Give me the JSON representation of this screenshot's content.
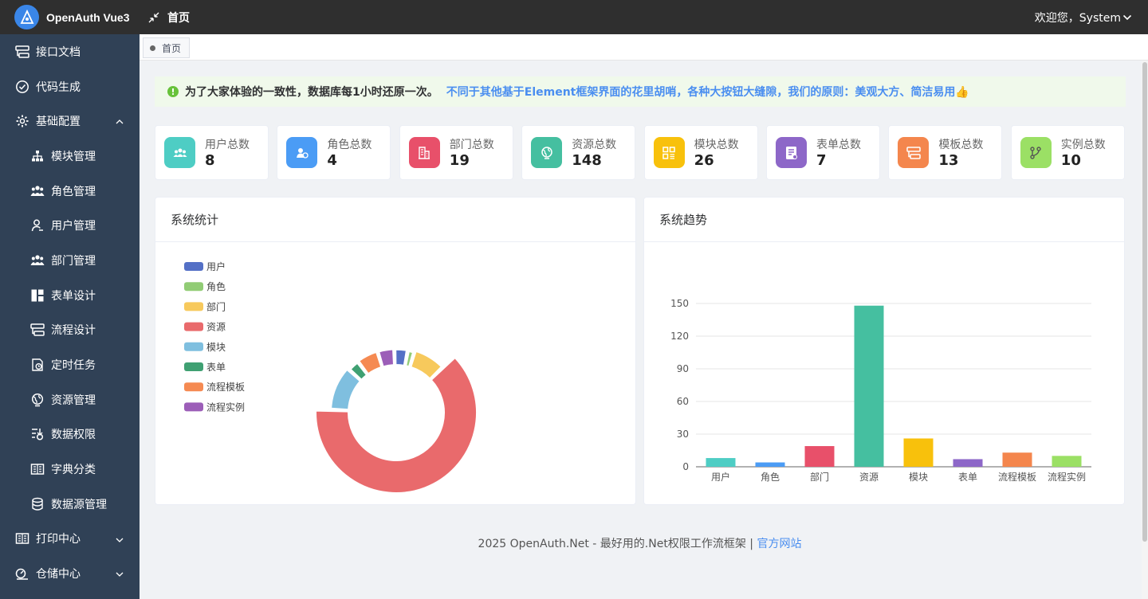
{
  "header": {
    "app_title": "OpenAuth Vue3",
    "page_title": "首页",
    "user_greeting": "欢迎您，System"
  },
  "sidebar": {
    "items": [
      {
        "label": "接口文档",
        "icon": "api-doc-icon",
        "level": 0
      },
      {
        "label": "代码生成",
        "icon": "check-circle-icon",
        "level": 0
      },
      {
        "label": "基础配置",
        "icon": "gear-icon",
        "level": 0,
        "expanded": true
      },
      {
        "label": "模块管理",
        "icon": "sitemap-icon",
        "level": 1
      },
      {
        "label": "角色管理",
        "icon": "users-icon",
        "level": 1
      },
      {
        "label": "用户管理",
        "icon": "user-icon",
        "level": 1
      },
      {
        "label": "部门管理",
        "icon": "department-icon",
        "level": 1
      },
      {
        "label": "表单设计",
        "icon": "form-layout-icon",
        "level": 1
      },
      {
        "label": "流程设计",
        "icon": "flow-icon",
        "level": 1
      },
      {
        "label": "定时任务",
        "icon": "timer-icon",
        "level": 1
      },
      {
        "label": "资源管理",
        "icon": "globe-icon",
        "level": 1
      },
      {
        "label": "数据权限",
        "icon": "data-permission-icon",
        "level": 1
      },
      {
        "label": "字典分类",
        "icon": "dictionary-icon",
        "level": 1
      },
      {
        "label": "数据源管理",
        "icon": "database-icon",
        "level": 1
      },
      {
        "label": "打印中心",
        "icon": "print-icon",
        "level": 0,
        "expanded": false
      },
      {
        "label": "仓储中心",
        "icon": "warehouse-icon",
        "level": 0,
        "expanded": false
      }
    ]
  },
  "tabs": [
    {
      "label": "首页",
      "active": true
    }
  ],
  "notice": {
    "text_main": "为了大家体验的一致性，数据库每1小时还原一次。",
    "text_highlight": "不同于其他基于Element框架界面的花里胡哨，各种大按钮大缝隙，我们的原则：美观大方、简洁易用👍"
  },
  "stats": [
    {
      "label": "用户总数",
      "value": "8",
      "color": "#4ecdc4",
      "icon": "users-icon"
    },
    {
      "label": "角色总数",
      "value": "4",
      "color": "#4b9cf5",
      "icon": "role-icon"
    },
    {
      "label": "部门总数",
      "value": "19",
      "color": "#e8506a",
      "icon": "building-icon"
    },
    {
      "label": "资源总数",
      "value": "148",
      "color": "#45bfa0",
      "icon": "globe-icon"
    },
    {
      "label": "模块总数",
      "value": "26",
      "color": "#f8c10c",
      "icon": "modules-icon"
    },
    {
      "label": "表单总数",
      "value": "7",
      "color": "#8d67c8",
      "icon": "form-icon"
    },
    {
      "label": "模板总数",
      "value": "13",
      "color": "#f4864d",
      "icon": "template-icon"
    },
    {
      "label": "实例总数",
      "value": "10",
      "color": "#9be065",
      "icon": "branch-icon"
    }
  ],
  "stats_card": {
    "title": "系统统计"
  },
  "trend_card": {
    "title": "系统趋势"
  },
  "chart_data": [
    {
      "type": "pie",
      "title": "",
      "donut": true,
      "legend_position": "left",
      "categories": [
        "用户",
        "角色",
        "部门",
        "资源",
        "模块",
        "表单",
        "流程模板",
        "流程实例"
      ],
      "values": [
        8,
        4,
        19,
        148,
        26,
        7,
        13,
        10
      ],
      "colors": [
        "#5470c6",
        "#91cc75",
        "#f7c95c",
        "#e96a6c",
        "#7fbfdf",
        "#3fa072",
        "#f58a52",
        "#9c5eb8"
      ]
    },
    {
      "type": "bar",
      "title": "",
      "xlabel": "",
      "ylabel": "",
      "categories": [
        "用户",
        "角色",
        "部门",
        "资源",
        "模块",
        "表单",
        "流程模板",
        "流程实例"
      ],
      "values": [
        8,
        4,
        19,
        148,
        26,
        7,
        13,
        10
      ],
      "colors": [
        "#4ecdc4",
        "#4b9cf5",
        "#e8506a",
        "#45bfa0",
        "#f8c10c",
        "#8d67c8",
        "#f4864d",
        "#9be065"
      ],
      "ylim": [
        0,
        150
      ],
      "yticks": [
        "0",
        "30",
        "60",
        "90",
        "120",
        "150"
      ],
      "grid": true
    }
  ],
  "footer": {
    "text": "2025 OpenAuth.Net - 最好用的.Net权限工作流框架 | ",
    "link": "官方网站"
  }
}
